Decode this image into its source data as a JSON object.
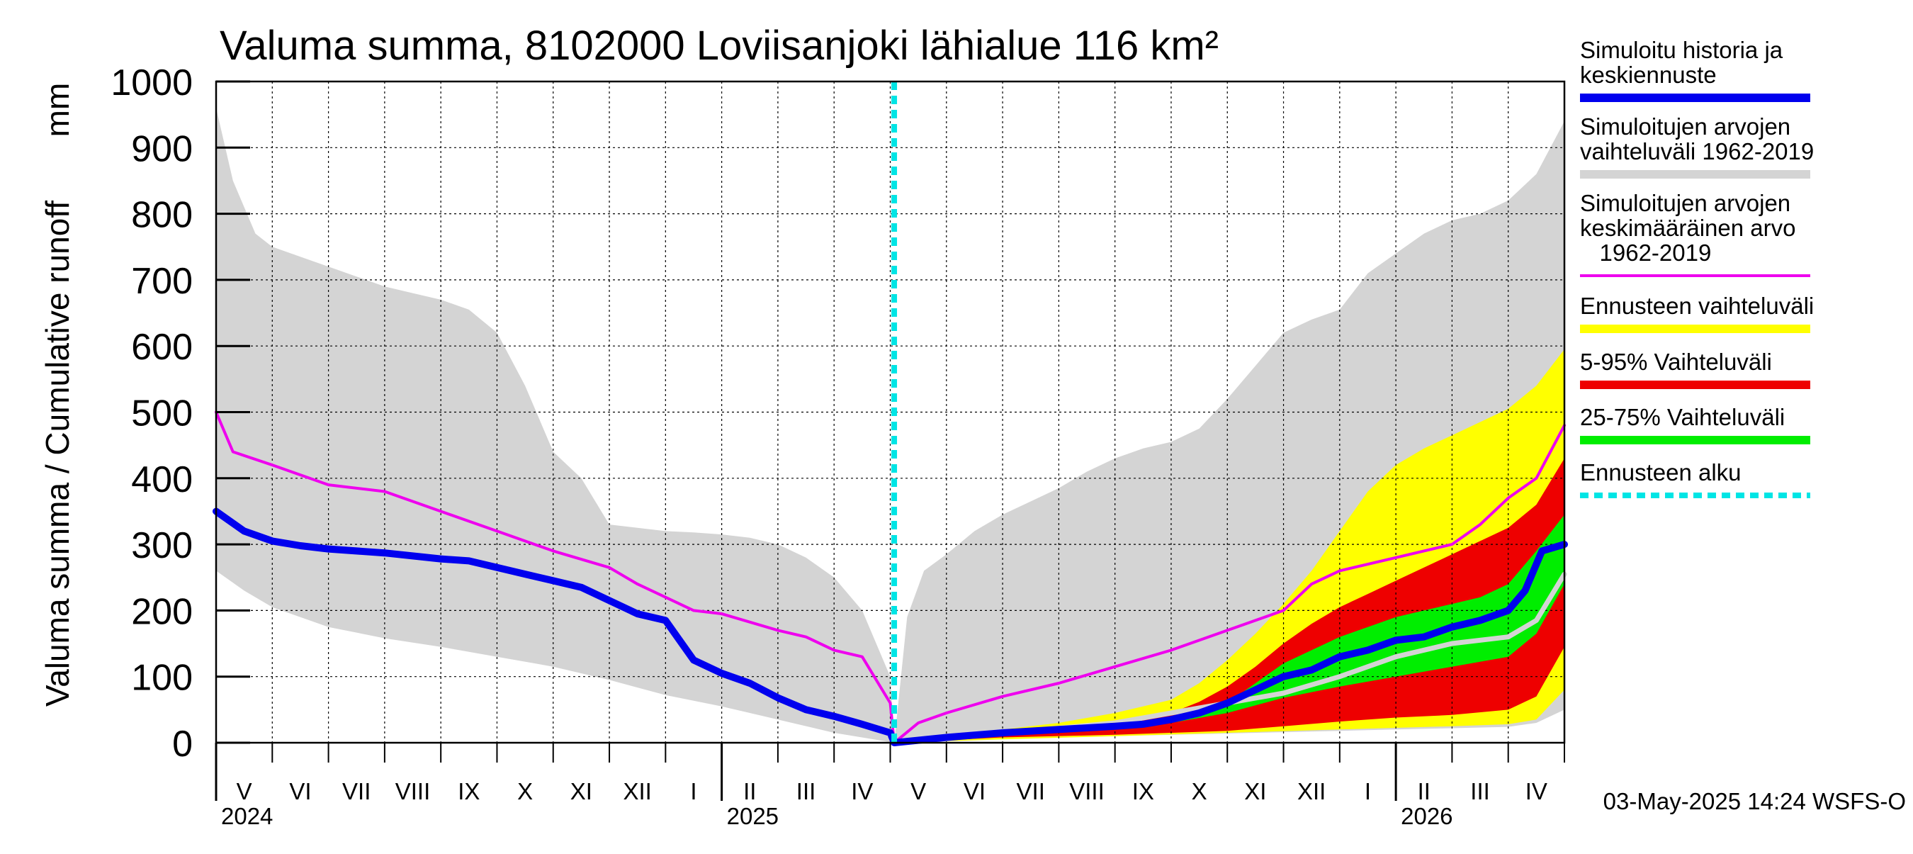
{
  "chart_data": {
    "type": "area",
    "title": "Valuma summa, 8102000 Loviisanjoki lähialue 116 km²",
    "ylabel": "Valuma summa / Cumulative runoff",
    "yunit": "mm",
    "ylim": [
      0,
      1000
    ],
    "yticks": [
      0,
      100,
      200,
      300,
      400,
      500,
      600,
      700,
      800,
      900,
      1000
    ],
    "x_unit": "months since 2024-04-01",
    "xlim": [
      1,
      25
    ],
    "forecast_start": 13.07,
    "month_labels": [
      "V",
      "VI",
      "VII",
      "VIII",
      "IX",
      "X",
      "XI",
      "XII",
      "I",
      "II",
      "III",
      "IV",
      "V",
      "VI",
      "VII",
      "VIII",
      "IX",
      "X",
      "XI",
      "XII",
      "I",
      "II",
      "III",
      "IV"
    ],
    "year_labels": [
      {
        "label": "2024",
        "x": 1
      },
      {
        "label": "2025",
        "x": 10
      },
      {
        "label": "2026",
        "x": 22
      }
    ],
    "timestamp": "03-May-2025 14:24 WSFS-O",
    "legend": [
      {
        "label": "Simuloitu historia ja\nkeskiennuste",
        "color": "#0000ee",
        "style": "solid"
      },
      {
        "label": "Simuloitujen arvojen\nvaihteluväli 1962-2019",
        "color": "#d4d4d4",
        "style": "solid"
      },
      {
        "label": "Simuloitujen arvojen\nkeskimääräinen arvo\n   1962-2019",
        "color": "#ee00ee",
        "style": "thin"
      },
      {
        "label": "Ennusteen vaihteluväli",
        "color": "#ffff00",
        "style": "solid"
      },
      {
        "label": "5-95% Vaihteluväli",
        "color": "#ee0000",
        "style": "solid"
      },
      {
        "label": "25-75% Vaihteluväli",
        "color": "#00ee00",
        "style": "solid"
      },
      {
        "label": "Ennusteen alku",
        "color": "#00e5e5",
        "style": "dashed"
      }
    ],
    "series": [
      {
        "name": "Simuloitujen arvojen vaihteluväli 1962-2019 (max)",
        "color": "#d4d4d4",
        "x": [
          1,
          1.3,
          1.7,
          2,
          2.5,
          3,
          3.5,
          4,
          4.5,
          5,
          5.5,
          6,
          6.5,
          7,
          7.5,
          8,
          8.5,
          9,
          9.5,
          10,
          10.5,
          11,
          11.5,
          12,
          12.5,
          13,
          13.07
        ],
        "values": [
          960,
          850,
          770,
          750,
          735,
          720,
          705,
          690,
          680,
          670,
          655,
          620,
          540,
          440,
          400,
          330,
          325,
          320,
          318,
          315,
          310,
          300,
          280,
          250,
          200,
          100,
          0
        ]
      },
      {
        "name": "Simuloitujen arvojen vaihteluväli 1962-2019 (min)",
        "color": "#d4d4d4",
        "x": [
          1,
          1.5,
          2,
          2.5,
          3,
          4,
          5,
          6,
          7,
          8,
          9,
          10,
          11,
          12,
          13.07
        ],
        "values": [
          260,
          230,
          205,
          190,
          175,
          158,
          145,
          130,
          115,
          95,
          72,
          55,
          35,
          15,
          0
        ]
      },
      {
        "name": "Simuloitujen arvojen vaihteluväli 1962-2019 (max, kausi 2)",
        "color": "#d4d4d4",
        "x": [
          13.07,
          13.3,
          13.6,
          14,
          14.5,
          15,
          15.5,
          16,
          16.5,
          17,
          17.5,
          18,
          18.5,
          19,
          19.5,
          20,
          20.5,
          21,
          21.5,
          22,
          22.5,
          23,
          23.5,
          24,
          24.5,
          25
        ],
        "values": [
          0,
          190,
          260,
          285,
          320,
          345,
          365,
          385,
          410,
          430,
          445,
          455,
          475,
          520,
          570,
          620,
          640,
          655,
          710,
          740,
          770,
          790,
          800,
          820,
          860,
          940
        ]
      },
      {
        "name": "Simuloitujen arvojen vaihteluväli 1962-2019 (min, kausi 2)",
        "color": "#d4d4d4",
        "x": [
          13.07,
          14,
          16,
          18,
          20,
          22,
          23,
          24,
          24.5,
          25
        ],
        "values": [
          0,
          4,
          8,
          12,
          16,
          20,
          22,
          24,
          30,
          50
        ]
      },
      {
        "name": "Ennusteen vaihteluväli (max)",
        "color": "#ffff00",
        "x": [
          13.07,
          14,
          15,
          16,
          17,
          18,
          18.5,
          19,
          19.5,
          20,
          20.5,
          21,
          21.5,
          22,
          22.5,
          23,
          23.5,
          24,
          24.5,
          25
        ],
        "values": [
          0,
          10,
          20,
          30,
          45,
          65,
          90,
          125,
          165,
          210,
          260,
          320,
          380,
          420,
          445,
          465,
          485,
          505,
          540,
          595
        ]
      },
      {
        "name": "Ennusteen vaihteluväli (min)",
        "color": "#ffff00",
        "x": [
          13.07,
          15,
          17,
          19,
          21,
          23,
          24,
          24.5,
          25
        ],
        "values": [
          0,
          5,
          10,
          15,
          20,
          25,
          28,
          35,
          80
        ]
      },
      {
        "name": "5-95% Vaihteluväli (95%)",
        "color": "#ee0000",
        "x": [
          13.07,
          14,
          15,
          16,
          17,
          18,
          18.5,
          19,
          19.5,
          20,
          20.5,
          21,
          21.5,
          22,
          22.5,
          23,
          23.5,
          24,
          24.5,
          25
        ],
        "values": [
          0,
          8,
          15,
          22,
          32,
          45,
          62,
          85,
          115,
          150,
          180,
          205,
          225,
          245,
          265,
          285,
          305,
          325,
          360,
          430
        ]
      },
      {
        "name": "5-95% Vaihteluväli (5%)",
        "color": "#ee0000",
        "x": [
          13.07,
          15,
          17,
          19,
          20,
          21,
          22,
          23,
          24,
          24.5,
          25
        ],
        "values": [
          0,
          8,
          12,
          18,
          25,
          32,
          38,
          42,
          50,
          70,
          145
        ]
      },
      {
        "name": "25-75% Vaihteluväli (75%)",
        "color": "#00ee00",
        "x": [
          13.07,
          14,
          15,
          16,
          17,
          18,
          18.5,
          19,
          19.5,
          20,
          20.5,
          21,
          21.5,
          22,
          22.5,
          23,
          23.5,
          24,
          24.5,
          25
        ],
        "values": [
          0,
          6,
          12,
          18,
          24,
          35,
          48,
          60,
          90,
          120,
          140,
          160,
          175,
          190,
          200,
          210,
          220,
          240,
          290,
          345
        ]
      },
      {
        "name": "25-75% Vaihteluväli (25%)",
        "color": "#00ee00",
        "x": [
          13.07,
          14,
          15,
          16,
          17,
          18,
          19,
          20,
          21,
          22,
          23,
          24,
          24.5,
          25
        ],
        "values": [
          0,
          5,
          10,
          15,
          20,
          30,
          45,
          68,
          85,
          100,
          115,
          130,
          165,
          240
        ]
      },
      {
        "name": "Simuloitujen arvojen keskimääräinen arvo 1962-2019",
        "color": "#ee00ee",
        "x": [
          1,
          1.3,
          2,
          3,
          4,
          5,
          6,
          7,
          8,
          8.5,
          9,
          9.5,
          10,
          11,
          11.5,
          12,
          12.5,
          13,
          13.07,
          13.5,
          14,
          15,
          16,
          17,
          18,
          19,
          20,
          20.5,
          21,
          22,
          23,
          23.5,
          24,
          24.5,
          25
        ],
        "values": [
          500,
          440,
          420,
          390,
          380,
          350,
          320,
          290,
          265,
          240,
          220,
          200,
          195,
          170,
          160,
          140,
          130,
          60,
          0,
          30,
          45,
          70,
          90,
          115,
          140,
          170,
          200,
          240,
          260,
          280,
          300,
          330,
          370,
          400,
          480
        ]
      },
      {
        "name": "Simuloitu historia ja keskiennuste",
        "color": "#0000ee",
        "x": [
          1,
          1.5,
          2,
          2.5,
          3,
          4,
          5,
          5.5,
          6,
          6.5,
          7,
          7.5,
          8,
          8.5,
          9,
          9.5,
          10,
          10.5,
          11,
          11.5,
          12,
          12.5,
          13,
          13.07,
          14,
          15,
          16,
          17,
          17.5,
          18,
          18.5,
          19,
          19.5,
          20,
          20.5,
          21,
          21.5,
          22,
          22.5,
          23,
          23.5,
          24,
          24.3,
          24.6,
          25
        ],
        "values": [
          350,
          320,
          305,
          298,
          293,
          287,
          278,
          275,
          265,
          255,
          245,
          235,
          215,
          195,
          185,
          125,
          105,
          90,
          68,
          50,
          40,
          28,
          15,
          0,
          8,
          15,
          20,
          25,
          28,
          35,
          45,
          60,
          80,
          100,
          110,
          130,
          140,
          155,
          160,
          175,
          185,
          200,
          230,
          290,
          300
        ]
      },
      {
        "name": "Ennusteen mediaani",
        "color": "#d4d4d4",
        "x": [
          13.07,
          14,
          15,
          16,
          17,
          18,
          19,
          20,
          21,
          22,
          23,
          24,
          24.5,
          25
        ],
        "values": [
          0,
          8,
          15,
          22,
          30,
          45,
          60,
          75,
          100,
          130,
          150,
          160,
          185,
          255
        ]
      }
    ]
  }
}
